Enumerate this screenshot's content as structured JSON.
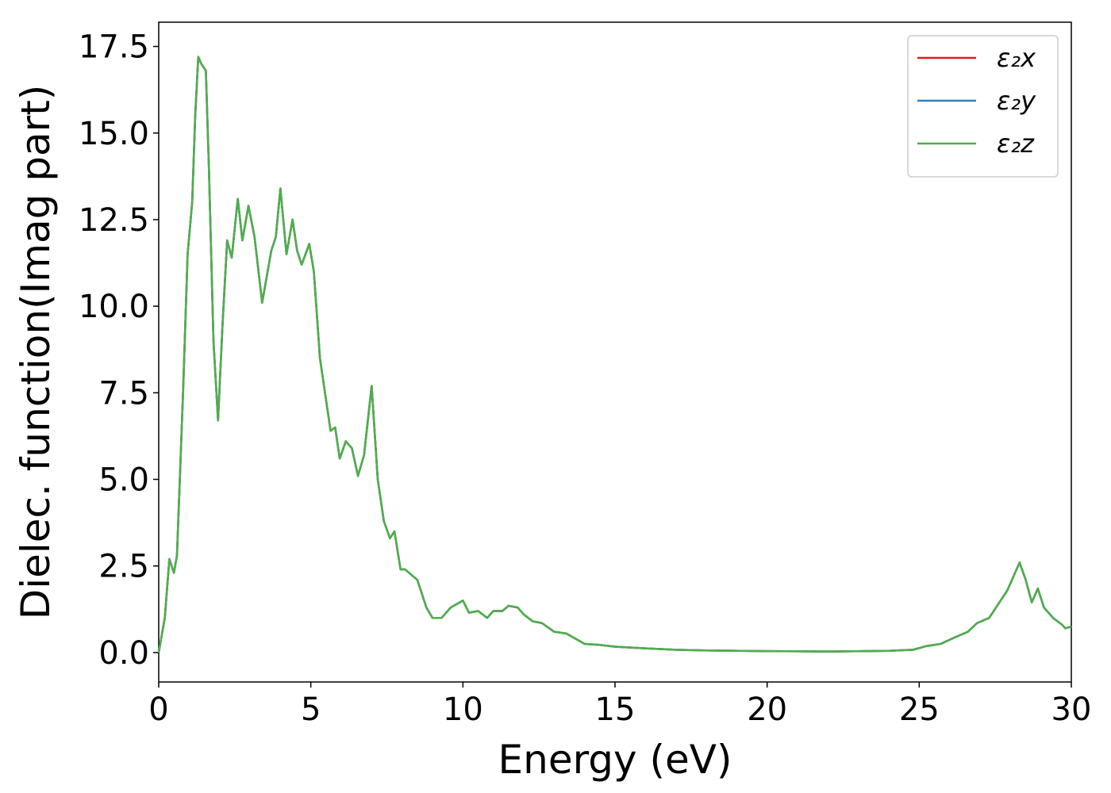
{
  "chart_data": {
    "type": "line",
    "x_label": "Energy (eV)",
    "y_label": "Dielec. function(Imag part)",
    "x": [
      0,
      0.2,
      0.35,
      0.5,
      0.6,
      0.8,
      0.95,
      1.1,
      1.2,
      1.3,
      1.4,
      1.55,
      1.65,
      1.8,
      1.95,
      2.1,
      2.25,
      2.4,
      2.6,
      2.75,
      2.95,
      3.15,
      3.4,
      3.7,
      3.85,
      4.0,
      4.2,
      4.4,
      4.55,
      4.7,
      4.95,
      5.1,
      5.3,
      5.45,
      5.65,
      5.8,
      5.95,
      6.15,
      6.35,
      6.55,
      6.75,
      7.0,
      7.2,
      7.4,
      7.6,
      7.75,
      7.95,
      8.1,
      8.5,
      8.8,
      9.0,
      9.3,
      9.6,
      10.0,
      10.2,
      10.5,
      10.8,
      11.0,
      11.3,
      11.5,
      11.8,
      12.0,
      12.3,
      12.6,
      13.0,
      13.4,
      14.0,
      14.5,
      15.0,
      16.0,
      17.0,
      18.0,
      20.0,
      22.0,
      24.0,
      24.8,
      25.2,
      25.7,
      26.2,
      26.6,
      26.9,
      27.3,
      27.6,
      27.9,
      28.1,
      28.3,
      28.5,
      28.7,
      28.9,
      29.1,
      29.4,
      29.7,
      29.8,
      30.0
    ],
    "series": [
      {
        "name": "ε₂x",
        "color": "#e41a1c",
        "values": [
          0.0,
          1.0,
          2.7,
          2.3,
          2.8,
          7.5,
          11.5,
          13.0,
          15.5,
          17.2,
          17.0,
          16.8,
          14.0,
          9.0,
          6.7,
          9.5,
          11.9,
          11.4,
          13.1,
          11.9,
          12.9,
          12.0,
          10.1,
          11.6,
          12.0,
          13.4,
          11.5,
          12.5,
          11.6,
          11.2,
          11.8,
          11.0,
          8.5,
          7.6,
          6.4,
          6.5,
          5.6,
          6.1,
          5.9,
          5.1,
          5.7,
          7.7,
          5.0,
          3.8,
          3.3,
          3.5,
          2.4,
          2.4,
          2.1,
          1.3,
          1.0,
          1.0,
          1.3,
          1.5,
          1.15,
          1.2,
          1.0,
          1.2,
          1.2,
          1.35,
          1.3,
          1.1,
          0.9,
          0.85,
          0.6,
          0.55,
          0.25,
          0.22,
          0.17,
          0.12,
          0.08,
          0.06,
          0.04,
          0.03,
          0.05,
          0.08,
          0.18,
          0.25,
          0.45,
          0.6,
          0.85,
          1.0,
          1.4,
          1.8,
          2.2,
          2.6,
          2.1,
          1.45,
          1.85,
          1.3,
          1.0,
          0.8,
          0.7,
          0.75
        ]
      },
      {
        "name": "ε₂y",
        "color": "#377eb8",
        "values": [
          0.0,
          1.0,
          2.7,
          2.3,
          2.8,
          7.5,
          11.5,
          13.0,
          15.5,
          17.2,
          17.0,
          16.8,
          14.0,
          9.0,
          6.7,
          9.5,
          11.9,
          11.4,
          13.1,
          11.9,
          12.9,
          12.0,
          10.1,
          11.6,
          12.0,
          13.4,
          11.5,
          12.5,
          11.6,
          11.2,
          11.8,
          11.0,
          8.5,
          7.6,
          6.4,
          6.5,
          5.6,
          6.1,
          5.9,
          5.1,
          5.7,
          7.7,
          5.0,
          3.8,
          3.3,
          3.5,
          2.4,
          2.4,
          2.1,
          1.3,
          1.0,
          1.0,
          1.3,
          1.5,
          1.15,
          1.2,
          1.0,
          1.2,
          1.2,
          1.35,
          1.3,
          1.1,
          0.9,
          0.85,
          0.6,
          0.55,
          0.25,
          0.22,
          0.17,
          0.12,
          0.08,
          0.06,
          0.04,
          0.03,
          0.05,
          0.08,
          0.18,
          0.25,
          0.45,
          0.6,
          0.85,
          1.0,
          1.4,
          1.8,
          2.2,
          2.6,
          2.1,
          1.45,
          1.85,
          1.3,
          1.0,
          0.8,
          0.7,
          0.75
        ]
      },
      {
        "name": "ε₂z",
        "color": "#4daf4a",
        "values": [
          0.0,
          1.0,
          2.7,
          2.3,
          2.8,
          7.5,
          11.5,
          13.0,
          15.5,
          17.2,
          17.0,
          16.8,
          14.0,
          9.0,
          6.7,
          9.5,
          11.9,
          11.4,
          13.1,
          11.9,
          12.9,
          12.0,
          10.1,
          11.6,
          12.0,
          13.4,
          11.5,
          12.5,
          11.6,
          11.2,
          11.8,
          11.0,
          8.5,
          7.6,
          6.4,
          6.5,
          5.6,
          6.1,
          5.9,
          5.1,
          5.7,
          7.7,
          5.0,
          3.8,
          3.3,
          3.5,
          2.4,
          2.4,
          2.1,
          1.3,
          1.0,
          1.0,
          1.3,
          1.5,
          1.15,
          1.2,
          1.0,
          1.2,
          1.2,
          1.35,
          1.3,
          1.1,
          0.9,
          0.85,
          0.6,
          0.55,
          0.25,
          0.22,
          0.17,
          0.12,
          0.08,
          0.06,
          0.04,
          0.03,
          0.05,
          0.08,
          0.18,
          0.25,
          0.45,
          0.6,
          0.85,
          1.0,
          1.4,
          1.8,
          2.2,
          2.6,
          2.1,
          1.45,
          1.85,
          1.3,
          1.0,
          0.8,
          0.7,
          0.75
        ]
      }
    ],
    "xlim": [
      0,
      30
    ],
    "xticks": [
      0,
      5,
      10,
      15,
      20,
      25,
      30
    ],
    "ylim": [
      -0.85,
      18.2
    ],
    "yticks": [
      {
        "value": 0,
        "label": "0.0"
      },
      2.5,
      {
        "value": 5,
        "label": "5.0"
      },
      7.5,
      {
        "value": 10,
        "label": "10.0"
      },
      12.5,
      {
        "value": 15,
        "label": "15.0"
      },
      17.5
    ],
    "grid": false,
    "legend": "upper right"
  }
}
